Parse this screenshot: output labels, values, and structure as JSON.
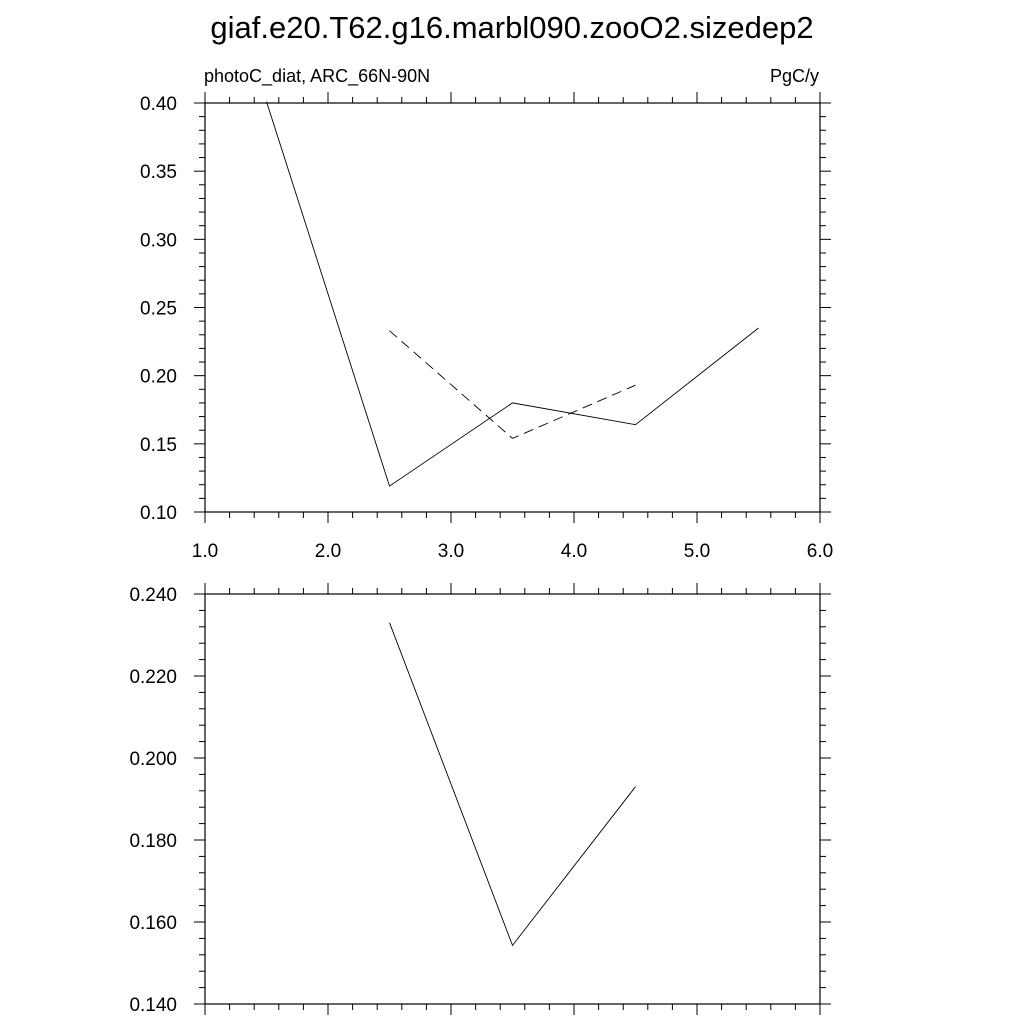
{
  "figure": {
    "title": "giaf.e20.T62.g16.marbl090.zooO2.sizedep2"
  },
  "chart_data": [
    {
      "type": "line",
      "left_label": "photoC_diat, ARC_66N-90N",
      "right_label": "PgC/y",
      "xlim": [
        1.0,
        6.0
      ],
      "ylim": [
        0.1,
        0.4
      ],
      "xticks": [
        "1.0",
        "2.0",
        "3.0",
        "4.0",
        "5.0",
        "6.0"
      ],
      "yticks": [
        "0.10",
        "0.15",
        "0.20",
        "0.25",
        "0.30",
        "0.35",
        "0.40"
      ],
      "series": [
        {
          "style": "solid",
          "x": [
            1.5,
            2.5,
            3.5,
            4.5,
            5.5
          ],
          "y": [
            0.401,
            0.119,
            0.18,
            0.164,
            0.235
          ]
        },
        {
          "style": "dashed",
          "x": [
            2.5,
            3.5,
            4.5
          ],
          "y": [
            0.233,
            0.154,
            0.193
          ]
        }
      ]
    },
    {
      "type": "line",
      "xlim": [
        1.0,
        6.0
      ],
      "ylim": [
        0.14,
        0.24
      ],
      "xticks": [],
      "yticks": [
        "0.140",
        "0.160",
        "0.180",
        "0.200",
        "0.220",
        "0.240"
      ],
      "series": [
        {
          "style": "solid",
          "x": [
            2.5,
            3.5,
            4.5
          ],
          "y": [
            0.233,
            0.1543,
            0.193
          ]
        }
      ]
    }
  ]
}
